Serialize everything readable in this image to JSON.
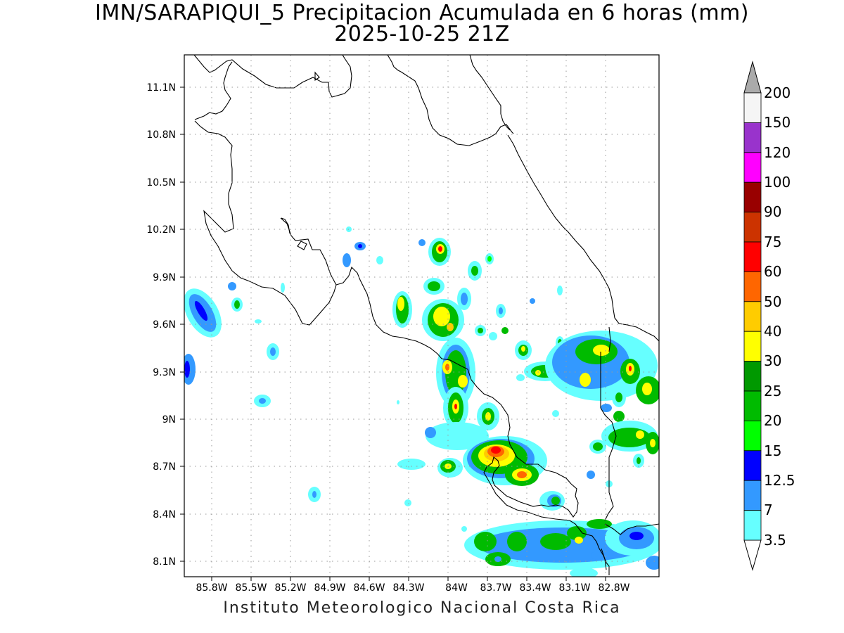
{
  "title_line1": "IMN/SARAPIQUI_5 Precipitacion Acumulada en 6 horas (mm)",
  "title_line2": "2025-10-25 21Z",
  "footer": "Instituto Meteorologico Nacional Costa Rica",
  "lon_labels": [
    "85.8W",
    "85.5W",
    "85.2W",
    "84.9W",
    "84.6W",
    "84.3W",
    "84W",
    "83.7W",
    "83.4W",
    "83.1W",
    "82.8W"
  ],
  "lat_labels": [
    "11.1N",
    "10.8N",
    "10.5N",
    "10.2N",
    "9.9N",
    "9.6N",
    "9.3N",
    "9N",
    "8.7N",
    "8.4N",
    "8.1N"
  ],
  "colorbar": {
    "levels": [
      "200",
      "150",
      "120",
      "100",
      "90",
      "75",
      "60",
      "50",
      "40",
      "30",
      "25",
      "20",
      "15",
      "12.5",
      "7",
      "3.5"
    ],
    "colors": [
      "#f5f5f5",
      "#9933cc",
      "#ff00ff",
      "#990000",
      "#cc3300",
      "#ff0000",
      "#ff6600",
      "#ffcc00",
      "#ffff00",
      "#009900",
      "#00bb00",
      "#00ff00",
      "#0000ff",
      "#3399ff",
      "#66ffff"
    ],
    "over_color": "#aaaaaa",
    "under_color": "#ffffff"
  }
}
